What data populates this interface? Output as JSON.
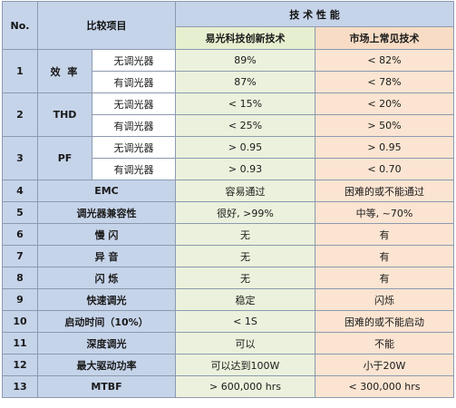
{
  "header": {
    "no": "No.",
    "item": "比较项目",
    "perf": "技 术 性 能",
    "ours": "易光科技创新技术",
    "market": "市场上常见技术"
  },
  "rows": [
    {
      "no": "1",
      "name": "效 率",
      "sub": "无调光器",
      "ours": "89%",
      "market": "< 82%"
    },
    {
      "sub": "有调光器",
      "ours": "87%",
      "market": "< 78%"
    },
    {
      "no": "2",
      "name": "THD",
      "sub": "无调光器",
      "ours": "< 15%",
      "market": "< 20%"
    },
    {
      "sub": "有调光器",
      "ours": "< 25%",
      "market": "> 50%"
    },
    {
      "no": "3",
      "name": "PF",
      "sub": "无调光器",
      "ours": "> 0.95",
      "market": "> 0.95"
    },
    {
      "sub": "有调光器",
      "ours": "> 0.93",
      "market": "< 0.70"
    },
    {
      "no": "4",
      "name": "EMC",
      "ours": "容易通过",
      "market": "困难的或不能通过"
    },
    {
      "no": "5",
      "name": "调光器兼容性",
      "ours": "很好, >99%",
      "market": "中等, ~70%"
    },
    {
      "no": "6",
      "name": "慢 闪",
      "ours": "无",
      "market": "有"
    },
    {
      "no": "7",
      "name": "异 音",
      "ours": "无",
      "market": "有"
    },
    {
      "no": "8",
      "name": "闪 烁",
      "ours": "无",
      "market": "有"
    },
    {
      "no": "9",
      "name": "快速调光",
      "ours": "稳定",
      "market": "闪烁"
    },
    {
      "no": "10",
      "name": "启动时间（10%）",
      "ours": "< 1S",
      "market": "困难的或不能启动"
    },
    {
      "no": "11",
      "name": "深度调光",
      "ours": "可以",
      "market": "不能"
    },
    {
      "no": "12",
      "name": "最大驱动功率",
      "ours": "可以达到100W",
      "market": "小于20W"
    },
    {
      "no": "13",
      "name": "MTBF",
      "ours": "> 600,000 hrs",
      "market": "< 300,000 hrs"
    }
  ]
}
